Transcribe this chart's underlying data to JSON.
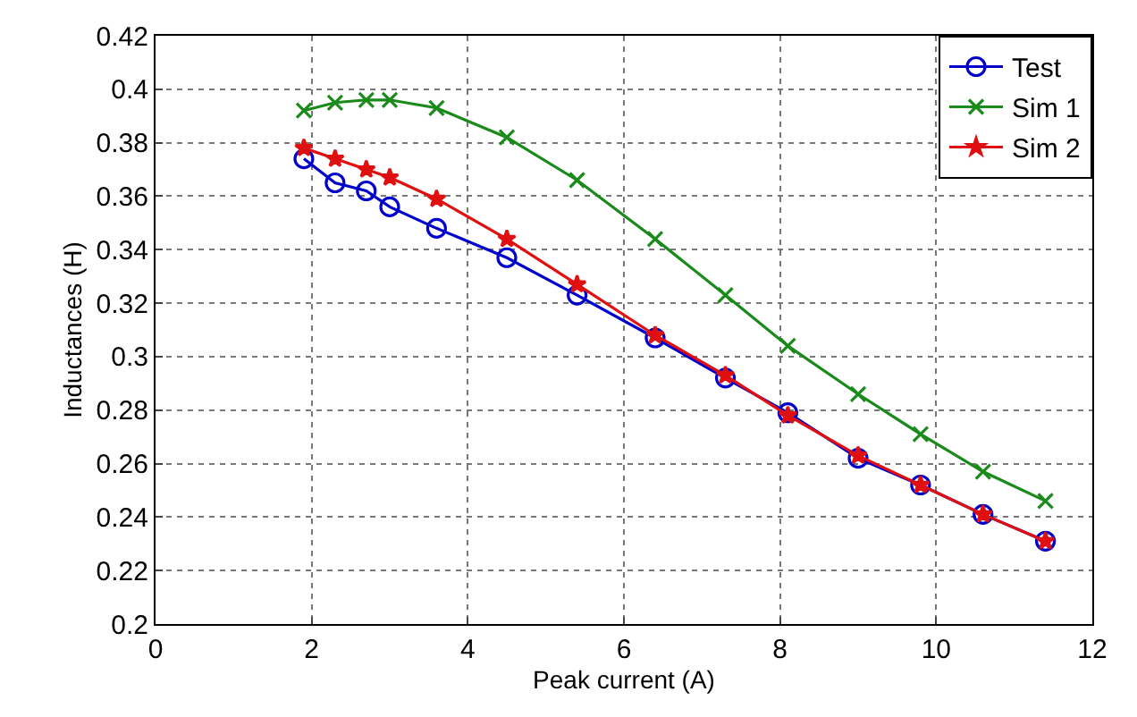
{
  "chart_data": {
    "type": "line",
    "xlabel": "Peak current (A)",
    "ylabel": "Inductances (H)",
    "x": [
      1.9,
      2.3,
      2.7,
      3.0,
      3.6,
      4.5,
      5.4,
      6.4,
      7.3,
      8.1,
      9.0,
      9.8,
      10.6,
      11.4
    ],
    "series": [
      {
        "name": "Test",
        "color": "#0000cc",
        "marker": "circle",
        "values": [
          0.374,
          0.365,
          0.362,
          0.356,
          0.348,
          0.337,
          0.323,
          0.307,
          0.292,
          0.279,
          0.262,
          0.252,
          0.241,
          0.231
        ]
      },
      {
        "name": "Sim 1",
        "color": "#1a8a1a",
        "marker": "cross",
        "values": [
          0.392,
          0.395,
          0.396,
          0.396,
          0.393,
          0.382,
          0.366,
          0.344,
          0.323,
          0.304,
          0.286,
          0.271,
          0.257,
          0.246
        ]
      },
      {
        "name": "Sim 2",
        "color": "#e01010",
        "marker": "star",
        "values": [
          0.378,
          0.374,
          0.37,
          0.367,
          0.359,
          0.344,
          0.327,
          0.308,
          0.293,
          0.278,
          0.263,
          0.252,
          0.241,
          0.231
        ]
      }
    ],
    "xlim": [
      0,
      12
    ],
    "xticks": [
      0,
      2,
      4,
      6,
      8,
      10,
      12
    ],
    "ylim": [
      0.2,
      0.42
    ],
    "yticks": [
      0.2,
      0.22,
      0.24,
      0.26,
      0.28,
      0.3,
      0.32,
      0.34,
      0.36,
      0.38,
      0.4,
      0.42
    ],
    "grid": true,
    "legend": "top right",
    "line_style": "solid"
  }
}
